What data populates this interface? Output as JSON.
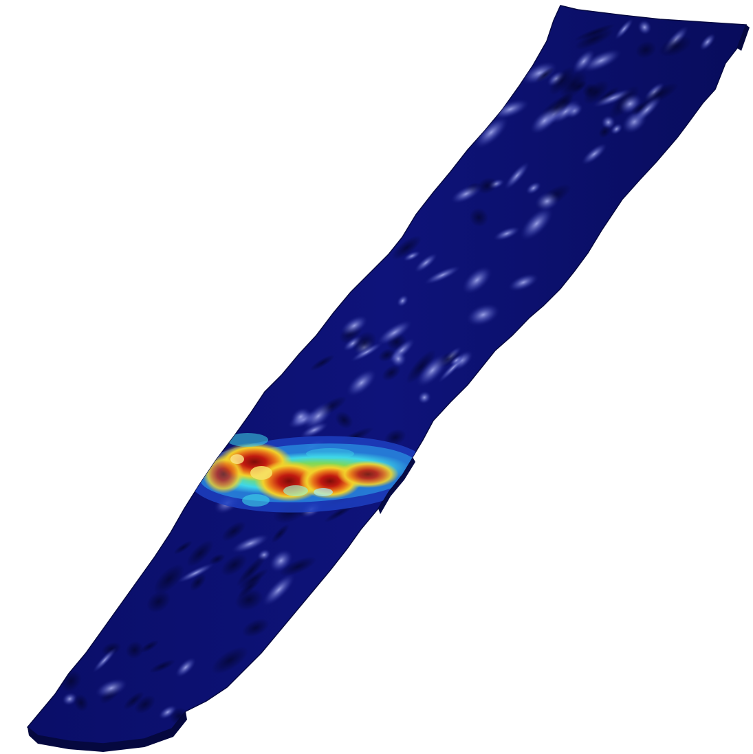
{
  "scene": {
    "object": "deformed-strip-contour-plot",
    "colors": {
      "background": "#ffffff",
      "strip_base": "#0b0f6e",
      "strip_dark": "#060a52",
      "strip_highlight": "#6f78d8",
      "edge": "#050840",
      "band_cyan": "#3fd7e8",
      "band_green": "#7ed957",
      "band_yellow": "#f2d22b",
      "band_orange": "#e8731a",
      "band_red": "#c01a10",
      "band_darkred": "#7d0d08"
    }
  }
}
